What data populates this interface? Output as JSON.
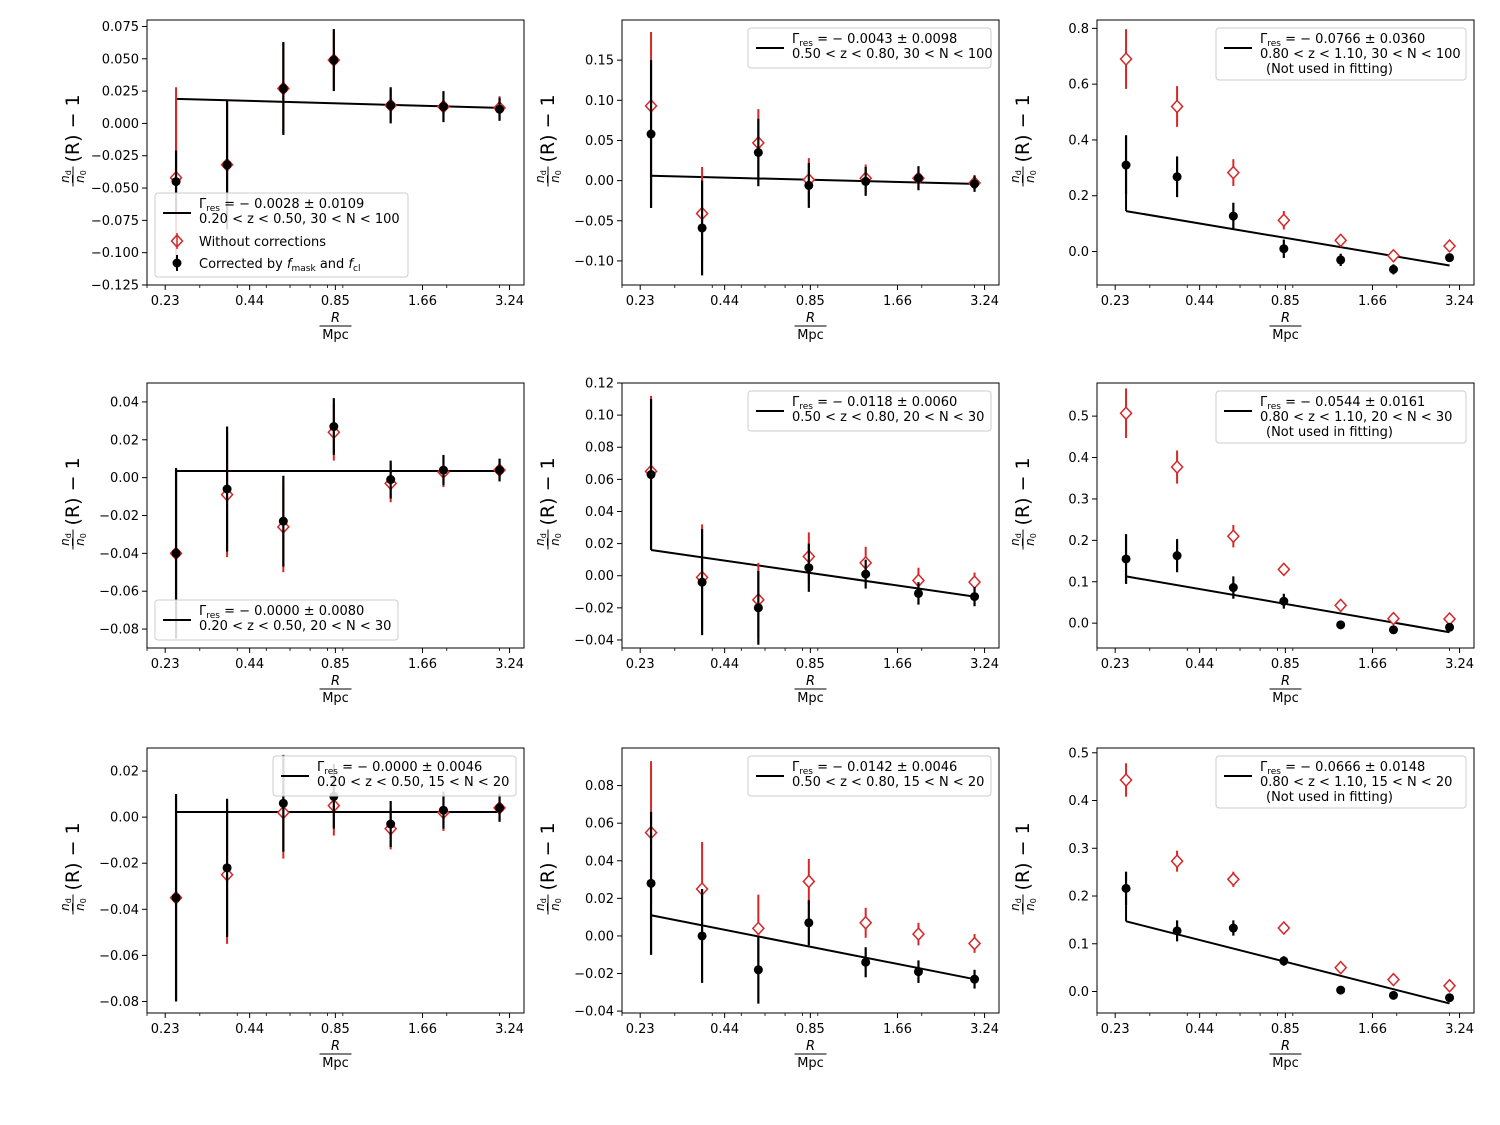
{
  "figure": {
    "legend_labels": {
      "without": "Without corrections",
      "corrected_prefix": "Corrected by ",
      "f_letter": "f",
      "mask_sub": "mask",
      "and_word": " and ",
      "cl_sub": "cl"
    },
    "ylabel_parts": {
      "n": "n",
      "d": "d",
      "n0": "n",
      "zero": "0",
      "rest": "(R) − 1"
    },
    "xlabel_parts": {
      "num": "R",
      "den": "Mpc"
    },
    "gamma_parts": {
      "G": "Γ",
      "sub": "res",
      "eq": " = "
    }
  },
  "chart_data": [
    {
      "type": "scatter",
      "ylim": [
        -0.125,
        0.08
      ],
      "yticks": [
        -0.125,
        -0.1,
        -0.075,
        -0.05,
        -0.025,
        0.0,
        0.025,
        0.05,
        0.075
      ],
      "yfmt": 3,
      "x": [
        0.25,
        0.37,
        0.57,
        0.84,
        1.3,
        1.95,
        3.0
      ],
      "xticks": [
        "0.23",
        "0.44",
        "0.85",
        "1.66",
        "3.24"
      ],
      "corrected": {
        "y": [
          -0.045,
          -0.032,
          0.027,
          0.049,
          0.014,
          0.013,
          0.011
        ],
        "err": [
          0.024,
          0.05,
          0.036,
          0.024,
          0.014,
          0.012,
          0.009
        ]
      },
      "uncorrected": {
        "y": [
          -0.042,
          -0.032,
          0.027,
          0.049,
          0.014,
          0.013,
          0.012
        ],
        "err": [
          0.07,
          0.05,
          0.035,
          0.022,
          0.012,
          0.011,
          0.009
        ]
      },
      "fit": {
        "y_start": 0.019,
        "y_end": 0.012
      },
      "legend": {
        "gamma": "− 0.0028 ± 0.0109",
        "range": "0.20 < z < 0.50, 30 < N < 100",
        "note": "",
        "position": "lower-left",
        "full": true
      }
    },
    {
      "type": "scatter",
      "ylim": [
        -0.13,
        0.2
      ],
      "yticks": [
        -0.1,
        -0.05,
        0.0,
        0.05,
        0.1,
        0.15
      ],
      "yfmt": 2,
      "x": [
        0.25,
        0.37,
        0.57,
        0.84,
        1.3,
        1.95,
        3.0
      ],
      "xticks": [
        "0.23",
        "0.44",
        "0.85",
        "1.66",
        "3.24"
      ],
      "corrected": {
        "y": [
          0.058,
          -0.059,
          0.035,
          -0.006,
          -0.001,
          0.003,
          -0.004
        ],
        "err": [
          0.092,
          0.059,
          0.042,
          0.028,
          0.018,
          0.015,
          0.01
        ]
      },
      "uncorrected": {
        "y": [
          0.093,
          -0.041,
          0.047,
          0.001,
          0.003,
          0.003,
          -0.003
        ],
        "err": [
          0.092,
          0.058,
          0.042,
          0.027,
          0.017,
          0.014,
          0.01
        ]
      },
      "fit": {
        "y_start": 0.006,
        "y_end": -0.004
      },
      "legend": {
        "gamma": "− 0.0043 ± 0.0098",
        "range": "0.50 < z < 0.80, 30 < N < 100",
        "note": "",
        "position": "upper-right",
        "full": false
      }
    },
    {
      "type": "scatter",
      "ylim": [
        -0.12,
        0.83
      ],
      "yticks": [
        0.0,
        0.2,
        0.4,
        0.6,
        0.8
      ],
      "yfmt": 1,
      "x": [
        0.25,
        0.37,
        0.57,
        0.84,
        1.3,
        1.95,
        3.0
      ],
      "xticks": [
        "0.23",
        "0.44",
        "0.85",
        "1.66",
        "3.24"
      ],
      "corrected": {
        "y": [
          0.31,
          0.268,
          0.127,
          0.01,
          -0.03,
          -0.064,
          -0.022
        ],
        "err": [
          0.107,
          0.073,
          0.048,
          0.033,
          0.022,
          0.018,
          0.012
        ]
      },
      "uncorrected": {
        "y": [
          0.69,
          0.52,
          0.283,
          0.112,
          0.04,
          -0.015,
          0.02
        ],
        "err": [
          0.107,
          0.073,
          0.048,
          0.033,
          0.022,
          0.018,
          0.012
        ]
      },
      "fit": {
        "y_start": 0.145,
        "y_end": -0.05
      },
      "legend": {
        "gamma": "− 0.0766 ± 0.0360",
        "range": "0.80 < z < 1.10, 30 < N < 100",
        "note": "(Not used in fitting)",
        "position": "upper-right",
        "full": false
      }
    },
    {
      "type": "scatter",
      "ylim": [
        -0.09,
        0.05
      ],
      "yticks": [
        -0.08,
        -0.06,
        -0.04,
        -0.02,
        0.0,
        0.02,
        0.04
      ],
      "yfmt": 2,
      "x": [
        0.25,
        0.37,
        0.57,
        0.84,
        1.3,
        1.95,
        3.0
      ],
      "xticks": [
        "0.23",
        "0.44",
        "0.85",
        "1.66",
        "3.24"
      ],
      "corrected": {
        "y": [
          -0.04,
          -0.006,
          -0.023,
          0.027,
          -0.001,
          0.004,
          0.004
        ],
        "err": [
          0.045,
          0.033,
          0.024,
          0.015,
          0.01,
          0.008,
          0.006
        ]
      },
      "uncorrected": {
        "y": [
          -0.04,
          -0.009,
          -0.026,
          0.024,
          -0.003,
          0.003,
          0.004
        ],
        "err": [
          0.045,
          0.033,
          0.024,
          0.015,
          0.01,
          0.008,
          0.006
        ]
      },
      "fit": {
        "y_start": 0.0035,
        "y_end": 0.0035
      },
      "legend": {
        "gamma": "− 0.0000 ± 0.0080",
        "range": "0.20 < z < 0.50, 20 < N < 30",
        "note": "",
        "position": "lower-left",
        "full": false
      }
    },
    {
      "type": "scatter",
      "ylim": [
        -0.045,
        0.12
      ],
      "yticks": [
        -0.04,
        -0.02,
        0.0,
        0.02,
        0.04,
        0.06,
        0.08,
        0.1,
        0.12
      ],
      "yfmt": 2,
      "x": [
        0.25,
        0.37,
        0.57,
        0.84,
        1.3,
        1.95,
        3.0
      ],
      "xticks": [
        "0.23",
        "0.44",
        "0.85",
        "1.66",
        "3.24"
      ],
      "corrected": {
        "y": [
          0.063,
          -0.004,
          -0.02,
          0.005,
          0.001,
          -0.011,
          -0.013
        ],
        "err": [
          0.047,
          0.033,
          0.023,
          0.015,
          0.009,
          0.007,
          0.006
        ]
      },
      "uncorrected": {
        "y": [
          0.065,
          -0.001,
          -0.015,
          0.012,
          0.008,
          -0.003,
          -0.004
        ],
        "err": [
          0.047,
          0.033,
          0.023,
          0.015,
          0.01,
          0.008,
          0.006
        ]
      },
      "fit": {
        "y_start": 0.016,
        "y_end": -0.013
      },
      "legend": {
        "gamma": "− 0.0118 ± 0.0060",
        "range": "0.50 < z < 0.80, 20 < N < 30",
        "note": "",
        "position": "upper-right",
        "full": false
      }
    },
    {
      "type": "scatter",
      "ylim": [
        -0.06,
        0.58
      ],
      "yticks": [
        0.0,
        0.1,
        0.2,
        0.3,
        0.4,
        0.5
      ],
      "yfmt": 1,
      "x": [
        0.25,
        0.37,
        0.57,
        0.84,
        1.3,
        1.95,
        3.0
      ],
      "xticks": [
        "0.23",
        "0.44",
        "0.85",
        "1.66",
        "3.24"
      ],
      "corrected": {
        "y": [
          0.155,
          0.163,
          0.086,
          0.053,
          -0.004,
          -0.016,
          -0.01
        ],
        "err": [
          0.06,
          0.04,
          0.027,
          0.018,
          0.01,
          0.008,
          0.006
        ]
      },
      "uncorrected": {
        "y": [
          0.507,
          0.377,
          0.21,
          0.13,
          0.043,
          0.011,
          0.01
        ],
        "err": [
          0.06,
          0.04,
          0.027,
          0.012,
          0.01,
          0.008,
          0.006
        ]
      },
      "fit": {
        "y_start": 0.113,
        "y_end": -0.022
      },
      "legend": {
        "gamma": "− 0.0544 ± 0.0161",
        "range": "0.80 < z < 1.10, 20 < N < 30",
        "note": "(Not used in fitting)",
        "position": "upper-right",
        "full": false
      }
    },
    {
      "type": "scatter",
      "ylim": [
        -0.085,
        0.03
      ],
      "yticks": [
        -0.08,
        -0.06,
        -0.04,
        -0.02,
        0.0,
        0.02
      ],
      "yfmt": 2,
      "x": [
        0.25,
        0.37,
        0.57,
        0.84,
        1.3,
        1.95,
        3.0
      ],
      "xticks": [
        "0.23",
        "0.44",
        "0.85",
        "1.66",
        "3.24"
      ],
      "corrected": {
        "y": [
          -0.035,
          -0.022,
          0.006,
          0.009,
          -0.003,
          0.003,
          0.004
        ],
        "err": [
          0.045,
          0.03,
          0.021,
          0.014,
          0.01,
          0.008,
          0.006
        ]
      },
      "uncorrected": {
        "y": [
          -0.035,
          -0.025,
          0.002,
          0.005,
          -0.005,
          0.002,
          0.004
        ],
        "err": [
          0.045,
          0.03,
          0.02,
          0.013,
          0.009,
          0.008,
          0.006
        ]
      },
      "fit": {
        "y_start": 0.0022,
        "y_end": 0.0022
      },
      "legend": {
        "gamma": "− 0.0000 ± 0.0046",
        "range": "0.20 < z < 0.50, 15 < N < 20",
        "note": "",
        "position": "upper-right",
        "full": false
      }
    },
    {
      "type": "scatter",
      "ylim": [
        -0.041,
        0.1
      ],
      "yticks": [
        -0.04,
        -0.02,
        0.0,
        0.02,
        0.04,
        0.06,
        0.08
      ],
      "yfmt": 2,
      "x": [
        0.25,
        0.37,
        0.57,
        0.84,
        1.3,
        1.95,
        3.0
      ],
      "xticks": [
        "0.23",
        "0.44",
        "0.85",
        "1.66",
        "3.24"
      ],
      "corrected": {
        "y": [
          0.028,
          0.0,
          -0.018,
          0.007,
          -0.014,
          -0.019,
          -0.023
        ],
        "err": [
          0.038,
          0.025,
          0.018,
          0.012,
          0.008,
          0.006,
          0.005
        ]
      },
      "uncorrected": {
        "y": [
          0.055,
          0.025,
          0.004,
          0.029,
          0.007,
          0.001,
          -0.004
        ],
        "err": [
          0.038,
          0.025,
          0.018,
          0.012,
          0.008,
          0.006,
          0.005
        ]
      },
      "fit": {
        "y_start": 0.011,
        "y_end": -0.023
      },
      "legend": {
        "gamma": "− 0.0142 ± 0.0046",
        "range": "0.50 < z < 0.80, 15 < N < 20",
        "note": "",
        "position": "upper-right",
        "full": false
      }
    },
    {
      "type": "scatter",
      "ylim": [
        -0.045,
        0.51
      ],
      "yticks": [
        0.0,
        0.1,
        0.2,
        0.3,
        0.4,
        0.5
      ],
      "yfmt": 1,
      "x": [
        0.25,
        0.37,
        0.57,
        0.84,
        1.3,
        1.95,
        3.0
      ],
      "xticks": [
        "0.23",
        "0.44",
        "0.85",
        "1.66",
        "3.24"
      ],
      "corrected": {
        "y": [
          0.216,
          0.127,
          0.133,
          0.064,
          0.003,
          -0.008,
          -0.013
        ],
        "err": [
          0.035,
          0.022,
          0.016,
          0.01,
          0.006,
          0.005,
          0.004
        ]
      },
      "uncorrected": {
        "y": [
          0.443,
          0.273,
          0.235,
          0.133,
          0.05,
          0.025,
          0.012
        ],
        "err": [
          0.035,
          0.022,
          0.016,
          0.01,
          0.006,
          0.005,
          0.004
        ]
      },
      "fit": {
        "y_start": 0.147,
        "y_end": -0.025
      },
      "legend": {
        "gamma": "− 0.0666 ± 0.0148",
        "range": "0.80 < z < 1.10, 15 < N < 20",
        "note": "(Not used in fitting)",
        "position": "upper-right",
        "full": false
      }
    }
  ]
}
